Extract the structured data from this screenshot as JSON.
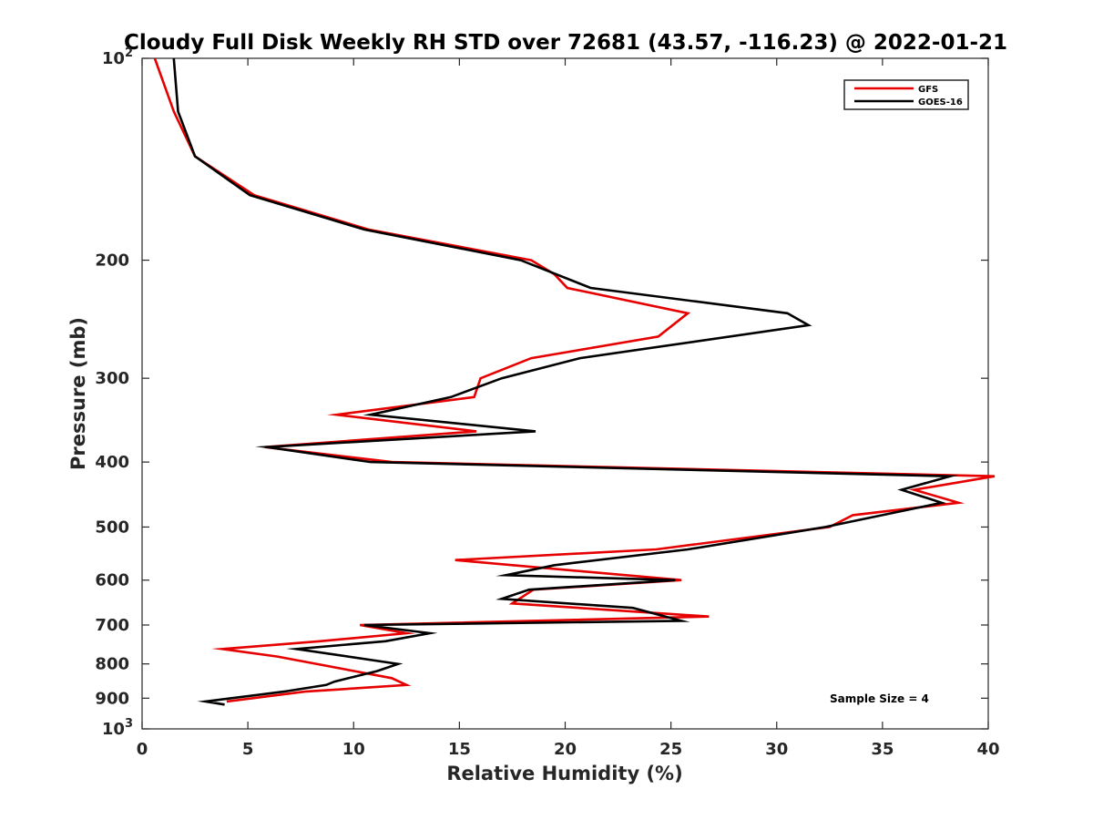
{
  "chart_data": {
    "type": "line",
    "title": "Cloudy Full Disk Weekly RH STD over 72681 (43.57, -116.23) @ 2022-01-21",
    "xlabel": "Relative Humidity (%)",
    "ylabel": "Pressure (mb)",
    "xlim": [
      0,
      40
    ],
    "ylim": [
      100,
      1000
    ],
    "yscale": "log",
    "y_reversed": true,
    "xticks": [
      0,
      5,
      10,
      15,
      20,
      25,
      30,
      35,
      40
    ],
    "yticks": [
      {
        "value": 100,
        "label": "10",
        "sup": "2"
      },
      {
        "value": 200,
        "label": "200"
      },
      {
        "value": 300,
        "label": "300"
      },
      {
        "value": 400,
        "label": "400"
      },
      {
        "value": 500,
        "label": "500"
      },
      {
        "value": 600,
        "label": "600"
      },
      {
        "value": 700,
        "label": "700"
      },
      {
        "value": 800,
        "label": "800"
      },
      {
        "value": 900,
        "label": "900"
      },
      {
        "value": 1000,
        "label": "10",
        "sup": "3"
      }
    ],
    "grid": false,
    "legend_position": "top-right",
    "annotation": "Sample Size = 4",
    "series": [
      {
        "name": "GFS",
        "color": "#e60000",
        "x": [
          0.6,
          1.5,
          2.5,
          5.3,
          10.7,
          18.4,
          19.5,
          20.1,
          25.8,
          24.4,
          18.4,
          16.0,
          15.7,
          9.2,
          15.8,
          5.8,
          11.8,
          40.3,
          36.5,
          38.6,
          33.6,
          32.5,
          24.3,
          14.8,
          25.5,
          18.5,
          17.5,
          26.8,
          10.3,
          12.5,
          8.4,
          3.8,
          6.4,
          11.8,
          12.5,
          7.7,
          4.0
        ],
        "y": [
          100,
          120,
          140,
          160,
          180,
          200,
          210,
          220,
          240,
          260,
          280,
          300,
          320,
          340,
          360,
          380,
          400,
          420,
          440,
          460,
          480,
          500,
          540,
          560,
          600,
          620,
          650,
          680,
          700,
          720,
          740,
          760,
          780,
          840,
          860,
          880,
          910
        ]
      },
      {
        "name": "GOES-16",
        "color": "#000000",
        "x": [
          1.5,
          1.7,
          2.5,
          5.1,
          10.5,
          17.9,
          21.2,
          30.5,
          31.5,
          20.7,
          17.0,
          14.6,
          10.8,
          18.6,
          5.9,
          10.8,
          38.2,
          35.9,
          37.8,
          32.3,
          25.8,
          19.5,
          17.2,
          25.2,
          18.3,
          17.0,
          23.2,
          25.5,
          10.5,
          13.6,
          11.5,
          7.3,
          12.1,
          11.1,
          9.1,
          8.7,
          6.7,
          3.0,
          3.9
        ],
        "y": [
          100,
          120,
          140,
          160,
          180,
          200,
          220,
          240,
          250,
          280,
          300,
          320,
          340,
          360,
          380,
          400,
          420,
          440,
          460,
          500,
          540,
          570,
          590,
          600,
          620,
          640,
          660,
          690,
          700,
          720,
          740,
          760,
          800,
          820,
          850,
          860,
          880,
          910,
          920
        ]
      }
    ]
  }
}
